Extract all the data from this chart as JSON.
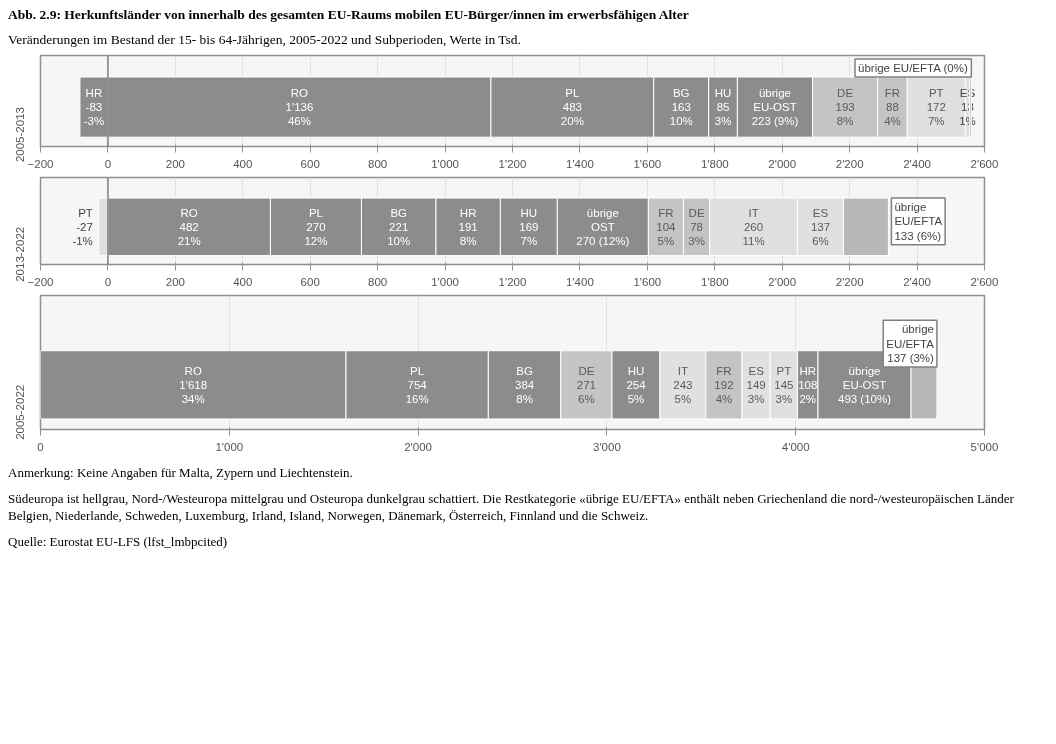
{
  "chart_data": [
    {
      "type": "bar",
      "title": "Abb. 2.9: Herkunftsländer von innerhalb des gesamten EU-Raums mobilen EU-Bürger/innen im erwerbsfähigen Alter",
      "subtitle": "Veränderungen im Bestand der 15- bis 64-Jährigen, 2005-2022 und Subperioden, Werte in Tsd.",
      "orientation": "horizontal",
      "stacked": true,
      "grid": "x",
      "categories": [
        "2005-2013"
      ],
      "xlim": [
        -200,
        2600
      ],
      "xticks": [
        -200,
        0,
        200,
        400,
        600,
        800,
        {
          "value": 1000,
          "label": "1'000"
        },
        {
          "value": 1200,
          "label": "1'200"
        },
        {
          "value": 1400,
          "label": "1'400"
        },
        {
          "value": 1600,
          "label": "1'600"
        },
        {
          "value": 1800,
          "label": "1'800"
        },
        {
          "value": 2000,
          "label": "2'000"
        },
        {
          "value": 2200,
          "label": "2'200"
        },
        {
          "value": 2400,
          "label": "2'400"
        },
        {
          "value": 2600,
          "label": "2'600"
        }
      ],
      "ref_lines": [
        {
          "axis": "x",
          "value": 0,
          "color": "#808080"
        }
      ],
      "series": [
        {
          "name": "HR",
          "color": "#8c8c8c",
          "values": [
            -83
          ],
          "value_labels": [
            "-83\n-3%"
          ]
        },
        {
          "name": "RO",
          "color": "#8c8c8c",
          "values": [
            1136
          ],
          "value_labels": [
            "1'136\n46%"
          ]
        },
        {
          "name": "PL",
          "color": "#8c8c8c",
          "values": [
            483
          ],
          "value_labels": [
            "483\n20%"
          ]
        },
        {
          "name": "BG",
          "color": "#8c8c8c",
          "values": [
            163
          ],
          "value_labels": [
            "163\n10%"
          ]
        },
        {
          "name": "HU",
          "color": "#8c8c8c",
          "values": [
            85
          ],
          "value_labels": [
            "85\n3%"
          ]
        },
        {
          "name": "übrige EU-OST",
          "color": "#8c8c8c",
          "values": [
            223
          ],
          "value_labels": [
            "223 (9%)"
          ]
        },
        {
          "name": "DE",
          "color": "#c4c4c4",
          "values": [
            193
          ],
          "value_labels": [
            "193\n8%"
          ]
        },
        {
          "name": "FR",
          "color": "#c4c4c4",
          "values": [
            88
          ],
          "value_labels": [
            "88\n4%"
          ]
        },
        {
          "name": "PT",
          "color": "#e0e0e0",
          "values": [
            172
          ],
          "value_labels": [
            "172\n7%"
          ]
        },
        {
          "name": "ES",
          "color": "#e0e0e0",
          "values": [
            13
          ],
          "value_labels": [
            "13\n1%"
          ]
        },
        {
          "name": "übrige EU/EFTA (0%)",
          "color": "#b8b8b8",
          "values": [
            5
          ]
        }
      ]
    },
    {
      "type": "bar",
      "orientation": "horizontal",
      "stacked": true,
      "grid": "x",
      "categories": [
        "2013-2022"
      ],
      "xlim": [
        -200,
        2600
      ],
      "xticks": [
        -200,
        0,
        200,
        400,
        600,
        800,
        {
          "value": 1000,
          "label": "1'000"
        },
        {
          "value": 1200,
          "label": "1'200"
        },
        {
          "value": 1400,
          "label": "1'400"
        },
        {
          "value": 1600,
          "label": "1'600"
        },
        {
          "value": 1800,
          "label": "1'800"
        },
        {
          "value": 2000,
          "label": "2'000"
        },
        {
          "value": 2200,
          "label": "2'200"
        },
        {
          "value": 2400,
          "label": "2'400"
        },
        {
          "value": 2600,
          "label": "2'600"
        }
      ],
      "ref_lines": [
        {
          "axis": "x",
          "value": 0,
          "color": "#808080"
        }
      ],
      "series": [
        {
          "name": "PT",
          "color": "#e0e0e0",
          "values": [
            -27
          ],
          "value_labels": [
            "-27\n-1%"
          ]
        },
        {
          "name": "RO",
          "color": "#8c8c8c",
          "values": [
            482
          ],
          "value_labels": [
            "482\n21%"
          ]
        },
        {
          "name": "PL",
          "color": "#8c8c8c",
          "values": [
            270
          ],
          "value_labels": [
            "270\n12%"
          ]
        },
        {
          "name": "BG",
          "color": "#8c8c8c",
          "values": [
            221
          ],
          "value_labels": [
            "221\n10%"
          ]
        },
        {
          "name": "HR",
          "color": "#8c8c8c",
          "values": [
            191
          ],
          "value_labels": [
            "191\n8%"
          ]
        },
        {
          "name": "HU",
          "color": "#8c8c8c",
          "values": [
            169
          ],
          "value_labels": [
            "169\n7%"
          ]
        },
        {
          "name": "übrige OST",
          "color": "#8c8c8c",
          "values": [
            270
          ],
          "value_labels": [
            "270 (12%)"
          ]
        },
        {
          "name": "FR",
          "color": "#c4c4c4",
          "values": [
            104
          ],
          "value_labels": [
            "104\n5%"
          ]
        },
        {
          "name": "DE",
          "color": "#c4c4c4",
          "values": [
            78
          ],
          "value_labels": [
            "78\n3%"
          ]
        },
        {
          "name": "IT",
          "color": "#e0e0e0",
          "values": [
            260
          ],
          "value_labels": [
            "260\n11%"
          ]
        },
        {
          "name": "ES",
          "color": "#e0e0e0",
          "values": [
            137
          ],
          "value_labels": [
            "137\n6%"
          ]
        },
        {
          "name": "übrige EU/EFTA",
          "color": "#b8b8b8",
          "values": [
            133
          ],
          "value_labels": [
            "133 (6%)"
          ]
        }
      ]
    },
    {
      "type": "bar",
      "orientation": "horizontal",
      "stacked": true,
      "grid": "x",
      "categories": [
        "2005-2022"
      ],
      "xlim": [
        0,
        5000
      ],
      "xticks": [
        0,
        {
          "value": 1000,
          "label": "1'000"
        },
        {
          "value": 2000,
          "label": "2'000"
        },
        {
          "value": 3000,
          "label": "3'000"
        },
        {
          "value": 4000,
          "label": "4'000"
        },
        {
          "value": 5000,
          "label": "5'000"
        }
      ],
      "annotations": [
        "Anmerkung: Keine Angaben für Malta, Zypern und Liechtenstein.",
        "Südeuropa ist hellgrau, Nord-/Westeuropa mittelgrau und Osteuropa dunkelgrau schattiert. Die Restkategorie «übrige EU/EFTA» enthält neben Griechenland die nord-/westeuropäischen Länder Belgien, Niederlande, Schweden, Luxemburg, Irland, Island, Norwegen, Dänemark, Österreich, Finnland und die Schweiz.",
        "Quelle: Eurostat EU-LFS (lfst_lmbpcited)"
      ],
      "series": [
        {
          "name": "RO",
          "color": "#8c8c8c",
          "values": [
            1618
          ],
          "value_labels": [
            "1'618\n34%"
          ]
        },
        {
          "name": "PL",
          "color": "#8c8c8c",
          "values": [
            754
          ],
          "value_labels": [
            "754\n16%"
          ]
        },
        {
          "name": "BG",
          "color": "#8c8c8c",
          "values": [
            384
          ],
          "value_labels": [
            "384\n8%"
          ]
        },
        {
          "name": "DE",
          "color": "#c4c4c4",
          "values": [
            271
          ],
          "value_labels": [
            "271\n6%"
          ]
        },
        {
          "name": "HU",
          "color": "#8c8c8c",
          "values": [
            254
          ],
          "value_labels": [
            "254\n5%"
          ]
        },
        {
          "name": "IT",
          "color": "#e0e0e0",
          "values": [
            243
          ],
          "value_labels": [
            "243\n5%"
          ]
        },
        {
          "name": "FR",
          "color": "#c4c4c4",
          "values": [
            192
          ],
          "value_labels": [
            "192\n4%"
          ]
        },
        {
          "name": "ES",
          "color": "#e0e0e0",
          "values": [
            149
          ],
          "value_labels": [
            "149\n3%"
          ]
        },
        {
          "name": "PT",
          "color": "#e0e0e0",
          "values": [
            145
          ],
          "value_labels": [
            "145\n3%"
          ]
        },
        {
          "name": "HR",
          "color": "#8c8c8c",
          "values": [
            108
          ],
          "value_labels": [
            "108\n2%"
          ]
        },
        {
          "name": "übrige EU-OST",
          "color": "#8c8c8c",
          "values": [
            493
          ],
          "value_labels": [
            "493 (10%)"
          ]
        },
        {
          "name": "übrige EU/EFTA",
          "color": "#b8b8b8",
          "values": [
            137
          ],
          "value_labels": [
            "137 (3%)"
          ]
        }
      ]
    }
  ]
}
